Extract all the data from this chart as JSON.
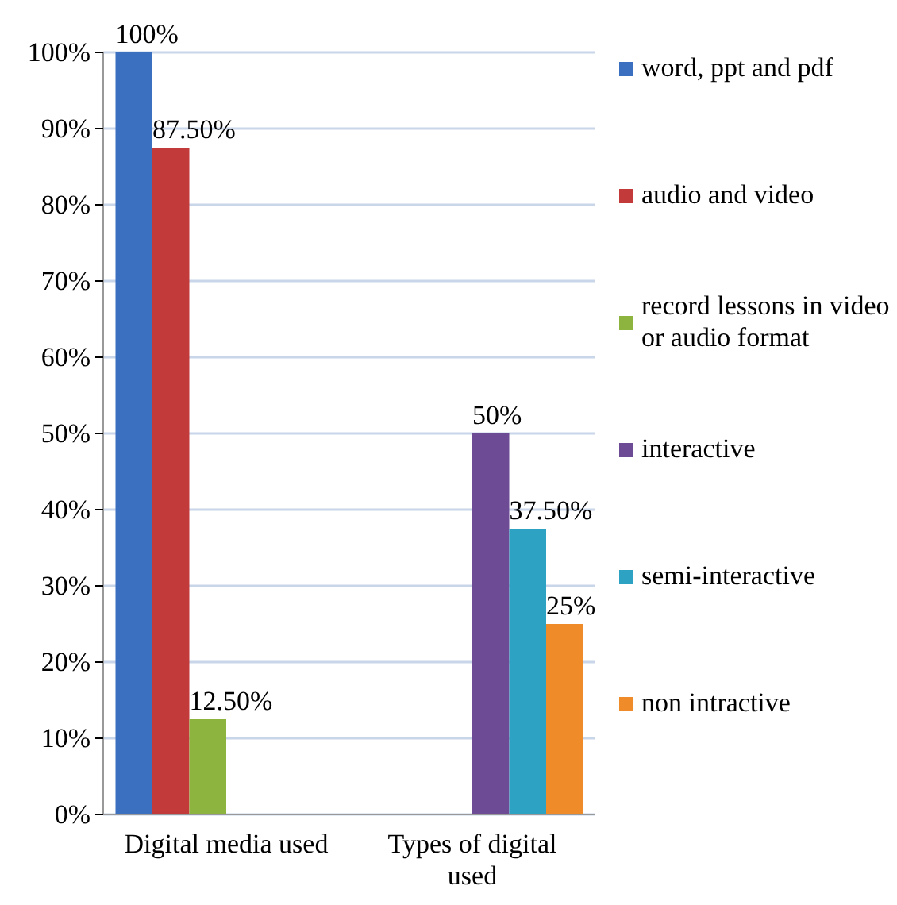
{
  "chart_data": {
    "type": "bar",
    "categories": [
      "Digital media used",
      "Types of digital used"
    ],
    "series": [
      {
        "name": "word, ppt and pdf",
        "color": "#3b6fbf",
        "values": [
          100,
          null
        ],
        "value_labels": [
          "100%",
          null
        ]
      },
      {
        "name": "audio and video",
        "color": "#c23b3a",
        "values": [
          87.5,
          null
        ],
        "value_labels": [
          "87.50%",
          null
        ]
      },
      {
        "name": "record lessons in video or audio format",
        "color": "#8db43f",
        "values": [
          12.5,
          null
        ],
        "value_labels": [
          "12.50%",
          null
        ]
      },
      {
        "name": "interactive",
        "color": "#6d4b95",
        "values": [
          null,
          50
        ],
        "value_labels": [
          null,
          "50%"
        ]
      },
      {
        "name": "semi-interactive",
        "color": "#2ea2c2",
        "values": [
          null,
          37.5
        ],
        "value_labels": [
          null,
          "37.50%"
        ]
      },
      {
        "name": "non intractive",
        "color": "#f08b2a",
        "values": [
          null,
          25
        ],
        "value_labels": [
          null,
          "25%"
        ]
      }
    ],
    "ylim": [
      0,
      100
    ],
    "yticks": [
      {
        "value": 0,
        "label": "0%"
      },
      {
        "value": 10,
        "label": "10%"
      },
      {
        "value": 20,
        "label": "20%"
      },
      {
        "value": 30,
        "label": "30%"
      },
      {
        "value": 40,
        "label": "40%"
      },
      {
        "value": 50,
        "label": "50%"
      },
      {
        "value": 60,
        "label": "60%"
      },
      {
        "value": 70,
        "label": "70%"
      },
      {
        "value": 80,
        "label": "80%"
      },
      {
        "value": 90,
        "label": "90%"
      },
      {
        "value": 100,
        "label": "100%"
      }
    ],
    "grid": "y",
    "legend": "right"
  }
}
